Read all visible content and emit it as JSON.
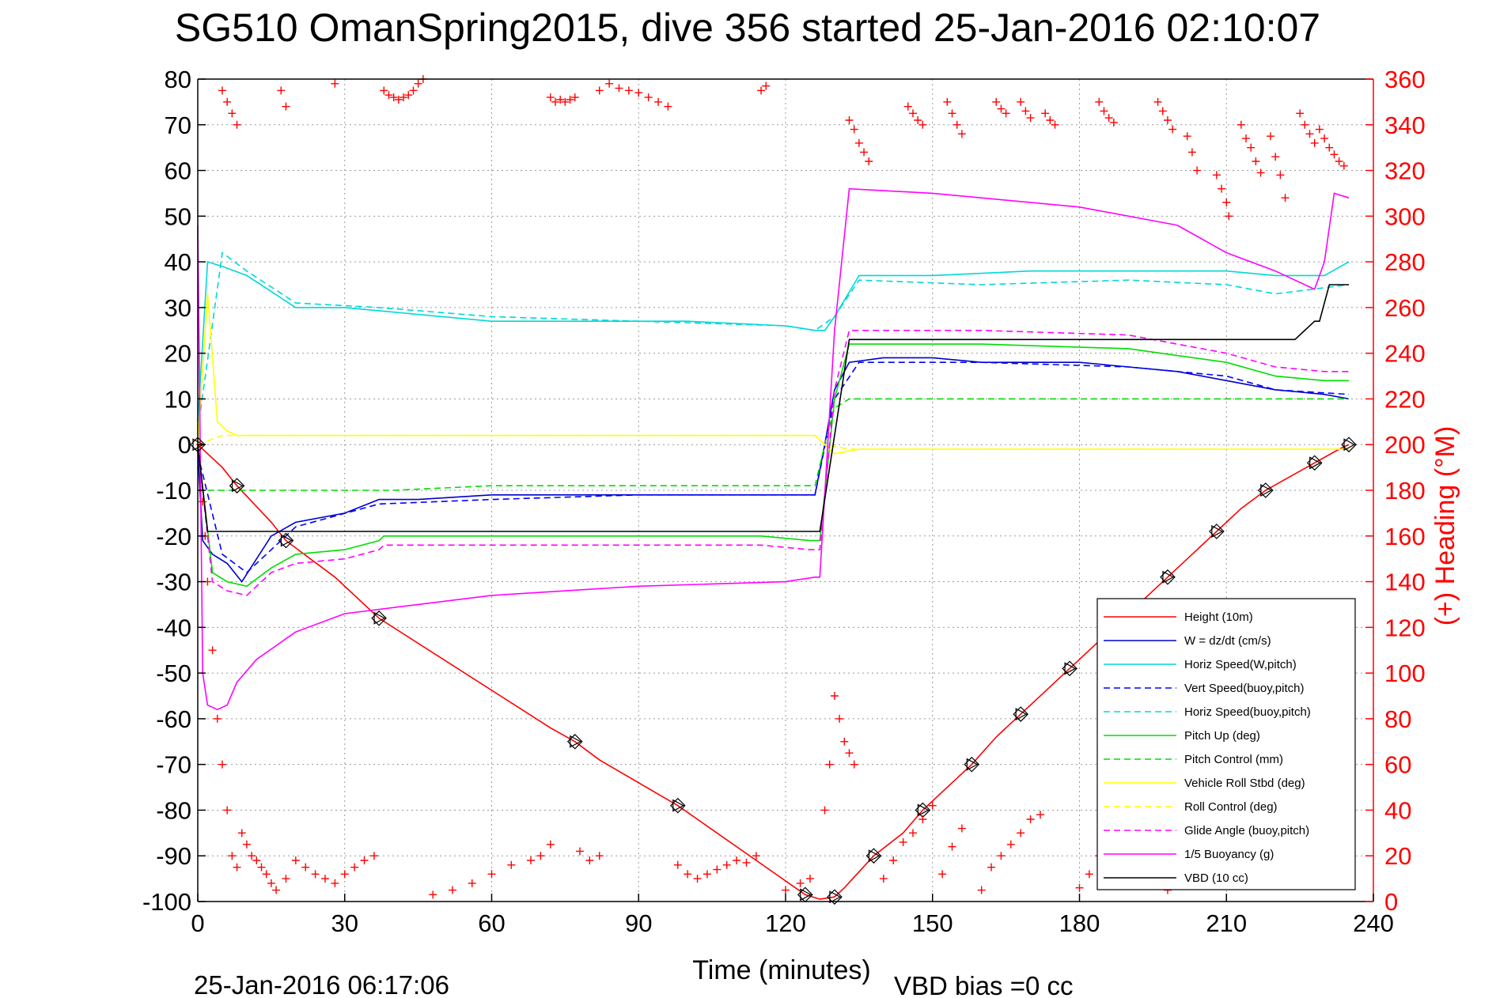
{
  "chart_data": {
    "type": "line",
    "title": "SG510 OmanSpring2015, dive 356 started 25-Jan-2016 02:10:07",
    "xlabel": "Time (minutes)",
    "ylabel_right": "(+) Heading (°M)",
    "footer_date": "25-Jan-2016 06:17:06",
    "footer_note": "VBD bias =0 cc",
    "xlim": [
      0,
      240
    ],
    "ylim_left": [
      -100,
      80
    ],
    "ylim_right": [
      0,
      360
    ],
    "x_ticks": [
      0,
      30,
      60,
      90,
      120,
      150,
      180,
      210,
      240
    ],
    "y_ticks_left": [
      80,
      70,
      60,
      50,
      40,
      30,
      20,
      10,
      0,
      -10,
      -20,
      -30,
      -40,
      -50,
      -60,
      -70,
      -80,
      -90,
      -100
    ],
    "y_ticks_right": [
      360,
      340,
      320,
      300,
      280,
      260,
      240,
      220,
      200,
      180,
      160,
      140,
      120,
      100,
      80,
      60,
      40,
      20,
      0
    ],
    "grid": true,
    "legend_position": "bottom-right",
    "series": [
      {
        "name": "Height (10m)",
        "color": "#ff0000",
        "style": "solid",
        "x": [
          0,
          5,
          8,
          15,
          18,
          28,
          37,
          72,
          77,
          82,
          98,
          114,
          124,
          127,
          130,
          132,
          138,
          144,
          148,
          153,
          158,
          163,
          168,
          173,
          178,
          183,
          188,
          193,
          198,
          203,
          208,
          213,
          218,
          223,
          228,
          233,
          235
        ],
        "y": [
          0,
          -5,
          -9,
          -17,
          -21,
          -29,
          -38,
          -62,
          -65,
          -69,
          -79,
          -91,
          -98.5,
          -99.5,
          -99,
          -97,
          -90,
          -85,
          -80,
          -75,
          -70,
          -64,
          -59,
          -54,
          -49,
          -44,
          -39,
          -34,
          -29,
          -24,
          -19,
          -14,
          -10,
          -7,
          -4,
          -1,
          0
        ]
      },
      {
        "name": "W  = dz/dt (cm/s)",
        "color": "#0000cc",
        "style": "solid",
        "x": [
          0,
          1,
          3,
          6,
          9,
          12,
          15,
          20,
          30,
          37,
          45,
          60,
          75,
          90,
          105,
          120,
          126,
          128,
          130,
          133,
          140,
          150,
          160,
          170,
          180,
          190,
          200,
          210,
          220,
          230,
          235
        ],
        "y": [
          -1,
          -21,
          -24,
          -26,
          -30,
          -25,
          -20,
          -17,
          -15,
          -12,
          -12,
          -11,
          -11,
          -11,
          -11,
          -11,
          -11,
          0,
          12,
          18,
          19,
          19,
          18,
          18,
          18,
          17,
          16,
          14,
          12,
          11,
          10
        ]
      },
      {
        "name": "Horiz Speed(W,pitch)",
        "color": "#00d8d8",
        "style": "solid",
        "x": [
          0,
          2,
          5,
          10,
          20,
          30,
          40,
          60,
          80,
          100,
          120,
          126,
          128,
          130,
          135,
          150,
          170,
          190,
          210,
          220,
          230,
          235
        ],
        "y": [
          5,
          40,
          39,
          37,
          30,
          30,
          29,
          27,
          27,
          27,
          26,
          25,
          25,
          28,
          37,
          37,
          38,
          38,
          38,
          37,
          37,
          40
        ]
      },
      {
        "name": "Vert Speed(buoy,pitch)",
        "color": "#0000ff",
        "style": "dashed",
        "x": [
          0,
          5,
          10,
          20,
          37,
          60,
          90,
          120,
          126,
          130,
          135,
          160,
          190,
          210,
          220,
          235
        ],
        "y": [
          -2,
          -24,
          -28,
          -18,
          -13,
          -12,
          -11,
          -11,
          -11,
          10,
          18,
          18,
          17,
          15,
          12,
          11
        ]
      },
      {
        "name": "Horiz Speed(buoy,pitch)",
        "color": "#00d8d8",
        "style": "dashed",
        "x": [
          0,
          5,
          10,
          20,
          37,
          60,
          90,
          120,
          126,
          130,
          135,
          160,
          190,
          210,
          220,
          235
        ],
        "y": [
          3,
          42,
          38,
          31,
          30,
          28,
          27,
          26,
          25,
          28,
          36,
          35,
          36,
          35,
          33,
          35
        ]
      },
      {
        "name": "Pitch Up (deg)",
        "color": "#00dd00",
        "style": "solid",
        "x": [
          0,
          3,
          6,
          10,
          15,
          20,
          30,
          37,
          38,
          60,
          90,
          115,
          125,
          127,
          130,
          133,
          160,
          190,
          210,
          220,
          230,
          235
        ],
        "y": [
          0,
          -28,
          -30,
          -31,
          -27,
          -24,
          -23,
          -21,
          -20,
          -20,
          -20,
          -20,
          -21,
          -21,
          10,
          22,
          22,
          21,
          18,
          15,
          14,
          14
        ]
      },
      {
        "name": "Pitch Control (mm)",
        "color": "#00dd00",
        "style": "dashed",
        "x": [
          0,
          1,
          2,
          6,
          10,
          20,
          30,
          40,
          60,
          90,
          120,
          126,
          128,
          130,
          133,
          160,
          200,
          220,
          235
        ],
        "y": [
          -10,
          -10,
          -10,
          -10,
          -10,
          -10,
          -10,
          -10,
          -9,
          -9,
          -9,
          -9,
          0,
          8,
          10,
          10,
          10,
          10,
          10
        ]
      },
      {
        "name": "Vehicle Roll Stbd (deg)",
        "color": "#ffff00",
        "style": "solid",
        "x": [
          0,
          2,
          4,
          6,
          8,
          10,
          20,
          40,
          60,
          90,
          120,
          126,
          128,
          130,
          135,
          160,
          190,
          210,
          230,
          235
        ],
        "y": [
          0,
          33,
          5,
          3,
          2,
          2,
          2,
          2,
          2,
          2,
          2,
          2,
          0,
          -2,
          -1,
          -1,
          -1,
          -1,
          -1,
          -1
        ]
      },
      {
        "name": "Roll Control (deg)",
        "color": "#ffff00",
        "style": "dashed",
        "x": [
          0,
          5,
          10,
          20,
          40,
          60,
          90,
          120,
          126,
          128,
          133,
          160,
          190,
          210,
          235
        ],
        "y": [
          0,
          2,
          2,
          2,
          2,
          2,
          2,
          2,
          2,
          0,
          -1,
          -1,
          -1,
          -1,
          -1
        ]
      },
      {
        "name": "Glide Angle (buoy,pitch)",
        "color": "#ff00ff",
        "style": "dashed",
        "x": [
          0,
          3,
          6,
          10,
          15,
          20,
          30,
          37,
          38,
          60,
          90,
          115,
          125,
          127,
          130,
          133,
          160,
          190,
          210,
          220,
          230,
          235
        ],
        "y": [
          0,
          -30,
          -32,
          -33,
          -28,
          -26,
          -25,
          -23,
          -22,
          -22,
          -22,
          -22,
          -23,
          -23,
          12,
          25,
          25,
          24,
          20,
          17,
          16,
          16
        ]
      },
      {
        "name": "1/5 Buoyancy (g)",
        "color": "#ff00ff",
        "style": "solid",
        "x": [
          0,
          1,
          2,
          4,
          6,
          8,
          12,
          20,
          30,
          45,
          60,
          90,
          120,
          126,
          127,
          130,
          133,
          150,
          180,
          200,
          210,
          220,
          228,
          230,
          232,
          235
        ],
        "y": [
          48,
          -50,
          -57,
          -58,
          -57,
          -52,
          -47,
          -41,
          -37,
          -35,
          -33,
          -31,
          -30,
          -29,
          -29,
          25,
          56,
          55,
          52,
          48,
          42,
          38,
          34,
          40,
          55,
          54
        ]
      },
      {
        "name": "VBD (10 cc)",
        "color": "#000000",
        "style": "solid",
        "x": [
          0,
          2,
          2.2,
          126,
          127,
          133,
          134,
          213,
          214,
          214.1,
          223,
          224,
          228,
          229,
          231,
          232,
          235
        ],
        "y": [
          0,
          -19,
          -19,
          -19,
          -19,
          23,
          23,
          23,
          23,
          23,
          23,
          23,
          27,
          27,
          35,
          35,
          35
        ]
      }
    ],
    "heading_points_degM": {
      "name": "(+) Heading",
      "color": "#ff0000",
      "marker": "+",
      "axis": "right",
      "x": [
        5,
        6,
        7,
        8,
        17,
        18,
        28,
        38,
        39,
        40,
        41,
        42,
        43,
        44,
        45,
        46,
        72,
        73,
        74,
        75,
        76,
        77,
        82,
        84,
        86,
        88,
        90,
        92,
        94,
        96,
        115,
        116,
        133,
        134,
        135,
        136,
        137,
        145,
        146,
        147,
        148,
        153,
        154,
        155,
        156,
        163,
        164,
        165,
        168,
        169,
        170,
        173,
        174,
        175,
        184,
        185,
        186,
        187,
        196,
        197,
        198,
        199,
        202,
        203,
        204,
        208,
        209,
        210,
        210.5,
        213,
        214,
        215,
        216,
        217,
        219,
        220,
        221,
        222,
        225,
        226,
        227,
        228,
        229,
        230,
        231,
        232,
        233,
        234,
        0.5,
        1,
        1.5,
        2,
        3,
        4,
        5,
        6,
        7,
        8,
        9,
        10,
        11,
        12,
        13,
        14,
        15,
        16,
        18,
        20,
        22,
        24,
        26,
        28,
        30,
        32,
        34,
        36,
        48,
        52,
        56,
        60,
        64,
        68,
        70,
        72,
        78,
        80,
        82,
        98,
        100,
        102,
        104,
        106,
        108,
        110,
        112,
        114,
        120,
        123,
        125,
        128,
        129,
        130,
        131,
        132,
        133,
        134,
        140,
        142,
        144,
        146,
        148,
        150,
        152,
        154,
        156,
        160,
        162,
        164,
        166,
        168,
        170,
        172,
        180,
        182,
        184,
        186,
        188,
        190,
        192,
        194,
        196,
        198,
        200,
        202,
        205,
        207,
        210,
        212,
        214,
        216,
        218,
        220,
        223,
        226,
        228,
        230,
        232,
        234
      ],
      "y": [
        355,
        350,
        345,
        340,
        355,
        348,
        358,
        355,
        353,
        352,
        351,
        352,
        353,
        355,
        358,
        360,
        352,
        350,
        351,
        350,
        351,
        352,
        355,
        358,
        356,
        355,
        354,
        352,
        350,
        348,
        355,
        357,
        342,
        338,
        332,
        328,
        324,
        348,
        345,
        342,
        340,
        350,
        345,
        340,
        336,
        350,
        347,
        345,
        350,
        346,
        343,
        345,
        342,
        340,
        350,
        346,
        343,
        341,
        350,
        346,
        342,
        338,
        335,
        328,
        320,
        318,
        312,
        306,
        300,
        340,
        334,
        330,
        324,
        319,
        335,
        326,
        318,
        308,
        345,
        340,
        336,
        332,
        338,
        334,
        330,
        327,
        324,
        322,
        200,
        175,
        160,
        140,
        110,
        80,
        60,
        40,
        20,
        15,
        30,
        25,
        20,
        18,
        15,
        12,
        8,
        5,
        10,
        18,
        15,
        12,
        10,
        8,
        12,
        15,
        18,
        20,
        3,
        5,
        8,
        12,
        16,
        18,
        20,
        25,
        22,
        18,
        20,
        16,
        12,
        10,
        12,
        14,
        16,
        18,
        17,
        20,
        5,
        8,
        10,
        40,
        60,
        90,
        80,
        70,
        65,
        60,
        10,
        18,
        26,
        30,
        36,
        42,
        12,
        24,
        32,
        5,
        15,
        20,
        25,
        30,
        36,
        38,
        6,
        12,
        20,
        28,
        36,
        44,
        50,
        55,
        58,
        5,
        8,
        10,
        20,
        35,
        42,
        48,
        12,
        26,
        38,
        46,
        55,
        60,
        70,
        75,
        80,
        86
      ]
    },
    "legend_entries": [
      "Height (10m)",
      "W  = dz/dt (cm/s)",
      "Horiz Speed(W,pitch)",
      "Vert Speed(buoy,pitch)",
      "Horiz Speed(buoy,pitch)",
      "Pitch Up (deg)",
      "Pitch Control (mm)",
      "Vehicle Roll Stbd (deg)",
      "Roll Control (deg)",
      "Glide Angle (buoy,pitch)",
      "1/5 Buoyancy (g)",
      "VBD (10 cc)"
    ]
  }
}
